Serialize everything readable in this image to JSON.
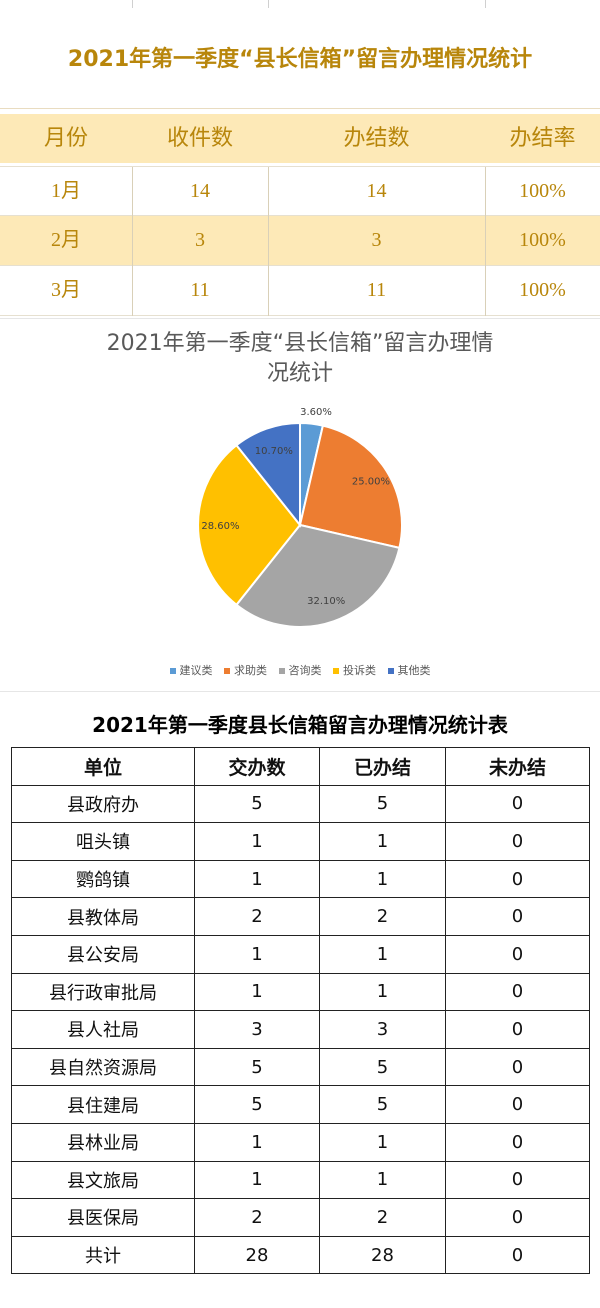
{
  "summary_table": {
    "title": "2021年第一季度“县长信箱”留言办理情况统计",
    "headers": [
      "月份",
      "收件数",
      "办结数",
      "办结率"
    ],
    "rows": [
      [
        "1月",
        "14",
        "14",
        "100%"
      ],
      [
        "2月",
        "3",
        "3",
        "100%"
      ],
      [
        "3月",
        "11",
        "11",
        "100%"
      ]
    ]
  },
  "chart_data": {
    "type": "pie",
    "title_line1": "2021年第一季度“县长信箱”留言办理情",
    "title_line2": "况统计",
    "categories": [
      "建议类",
      "求助类",
      "咨询类",
      "投诉类",
      "其他类"
    ],
    "values": [
      3.6,
      25.0,
      32.1,
      28.6,
      10.7
    ],
    "labels": [
      "3.60%",
      "25.00%",
      "32.10%",
      "28.60%",
      "10.70%"
    ],
    "colors": [
      "#5b9bd5",
      "#ed7d31",
      "#a5a5a5",
      "#ffc000",
      "#4472c4"
    ],
    "legend_position": "bottom"
  },
  "detail_table": {
    "title": "2021年第一季度县长信箱留言办理情况统计表",
    "headers": [
      "单位",
      "交办数",
      "已办结",
      "未办结"
    ],
    "rows": [
      [
        "县政府办",
        "5",
        "5",
        "0"
      ],
      [
        "咀头镇",
        "1",
        "1",
        "0"
      ],
      [
        "鹦鸽镇",
        "1",
        "1",
        "0"
      ],
      [
        "县教体局",
        "2",
        "2",
        "0"
      ],
      [
        "县公安局",
        "1",
        "1",
        "0"
      ],
      [
        "县行政审批局",
        "1",
        "1",
        "0"
      ],
      [
        "县人社局",
        "3",
        "3",
        "0"
      ],
      [
        "县自然资源局",
        "5",
        "5",
        "0"
      ],
      [
        "县住建局",
        "5",
        "5",
        "0"
      ],
      [
        "县林业局",
        "1",
        "1",
        "0"
      ],
      [
        "县文旅局",
        "1",
        "1",
        "0"
      ],
      [
        "县医保局",
        "2",
        "2",
        "0"
      ],
      [
        "共计",
        "28",
        "28",
        "0"
      ]
    ]
  }
}
